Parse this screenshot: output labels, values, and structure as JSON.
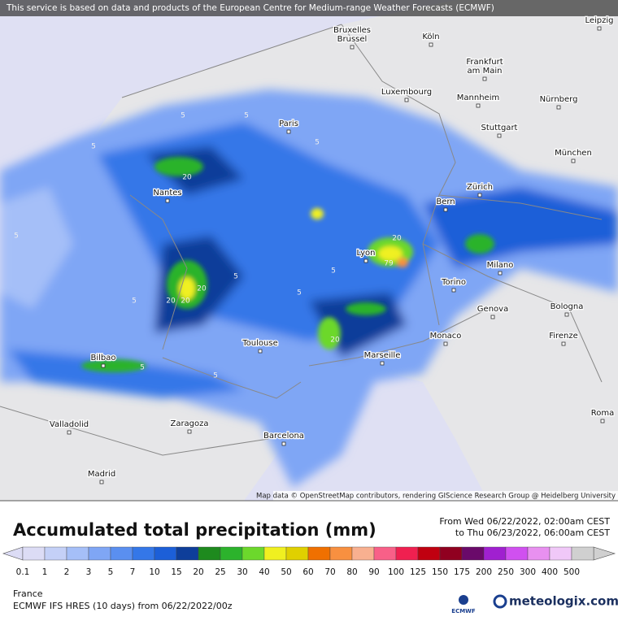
{
  "header": {
    "notice": "This service is based on data and products of the European Centre for Medium-range Weather Forecasts (ECMWF)"
  },
  "map": {
    "cities": [
      [
        "Bruxelles",
        "Brussel"
      ],
      [
        "Köln"
      ],
      [
        "Leipzig"
      ],
      [
        "Frankfurt",
        "am Main"
      ],
      [
        "Luxembourg"
      ],
      [
        "Mannheim"
      ],
      [
        "Nürnberg"
      ],
      [
        "Paris"
      ],
      [
        "Stuttgart"
      ],
      [
        "München"
      ],
      [
        "Nantes"
      ],
      [
        "Zürich"
      ],
      [
        "Bern"
      ],
      [
        "Lyon"
      ],
      [
        "Milano"
      ],
      [
        "Torino"
      ],
      [
        "Genova"
      ],
      [
        "Bologna"
      ],
      [
        "Monaco"
      ],
      [
        "Firenze"
      ],
      [
        "Toulouse"
      ],
      [
        "Marseille"
      ],
      [
        "Bilbao"
      ],
      [
        "Valladolid"
      ],
      [
        "Zaragoza"
      ],
      [
        "Barcelona"
      ],
      [
        "Roma"
      ],
      [
        "Madrid"
      ]
    ],
    "contour_labels": [
      "5",
      "5",
      "5",
      "5",
      "20",
      "20",
      "5",
      "20",
      "20",
      "5",
      "5",
      "5",
      "20",
      "79",
      "20",
      "5",
      "5",
      "5"
    ],
    "attribution": "Map data © OpenStreetMap contributors, rendering GIScience Research Group @ Heidelberg University"
  },
  "legend": {
    "title": "Accumulated total precipitation (mm)",
    "period_from": "From Wed 06/22/2022, 02:00am CEST",
    "period_to": "to Thu 06/23/2022, 06:00am CEST",
    "ticks": [
      "0.1",
      "1",
      "2",
      "3",
      "5",
      "7",
      "10",
      "15",
      "20",
      "25",
      "30",
      "40",
      "50",
      "60",
      "70",
      "80",
      "90",
      "100",
      "125",
      "150",
      "175",
      "200",
      "250",
      "300",
      "400",
      "500"
    ],
    "colors": [
      "#dcdcf5",
      "#c4d0f7",
      "#a5bff8",
      "#7fa6f5",
      "#5a8ff0",
      "#3477e8",
      "#1c5fd8",
      "#0e3e9a",
      "#1e8a1e",
      "#2cb32c",
      "#6cd82c",
      "#f0f020",
      "#e0d000",
      "#f07000",
      "#f89040",
      "#f8b090",
      "#f86088",
      "#f02050",
      "#c00010",
      "#900020",
      "#6a0a6a",
      "#a020d0",
      "#d050f0",
      "#e890f0",
      "#f0c8f8",
      "#d0d0d0"
    ]
  },
  "footer": {
    "region": "France",
    "model": "ECMWF IFS HRES (10 days) from 06/22/2022/00z",
    "ecmwf_logo": "ECMWF",
    "brand": "meteologix.com"
  }
}
